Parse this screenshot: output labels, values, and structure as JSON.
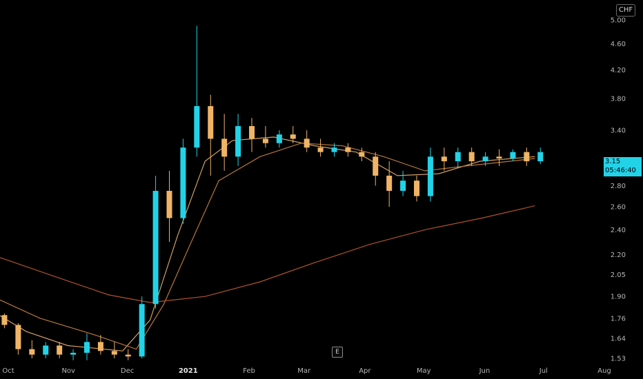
{
  "currency_badge": "CHF",
  "earnings_marker": "E",
  "last_price": {
    "value": "3.15",
    "countdown": "05:46:40"
  },
  "chart_data": {
    "type": "candlestick",
    "title": "",
    "ylim": [
      1.53,
      5.3
    ],
    "y_scale": "log",
    "grid": false,
    "y_tick_labels": [
      "5",
      "5.00",
      "4.60",
      "4.20",
      "3.80",
      "3.40",
      "2.80",
      "2.60",
      "2.40",
      "2.20",
      "2.05",
      "1.90",
      "1.76",
      "1.64",
      "1.53"
    ],
    "x_tick_labels": [
      "Oct",
      "Nov",
      "Dec",
      "2021",
      "Feb",
      "Mar",
      "Apr",
      "May",
      "Jun",
      "Jul",
      "Aug"
    ],
    "colors": {
      "up": "#22d3e8",
      "down": "#f0b466",
      "ma_fast": "#d4a060",
      "ma_mid": "#b8773a",
      "ma_slow": "#b0532a"
    },
    "ohlc_weekly": [
      {
        "week": "2020-09-28",
        "o": 1.78,
        "h": 1.79,
        "l": 1.7,
        "c": 1.72
      },
      {
        "week": "2020-10-05",
        "o": 1.72,
        "h": 1.73,
        "l": 1.55,
        "c": 1.58
      },
      {
        "week": "2020-10-12",
        "o": 1.58,
        "h": 1.63,
        "l": 1.53,
        "c": 1.55
      },
      {
        "week": "2020-10-19",
        "o": 1.55,
        "h": 1.62,
        "l": 1.53,
        "c": 1.6
      },
      {
        "week": "2020-10-26",
        "o": 1.6,
        "h": 1.62,
        "l": 1.53,
        "c": 1.55
      },
      {
        "week": "2020-11-02",
        "o": 1.55,
        "h": 1.58,
        "l": 1.52,
        "c": 1.56
      },
      {
        "week": "2020-11-09",
        "o": 1.56,
        "h": 1.67,
        "l": 1.52,
        "c": 1.62
      },
      {
        "week": "2020-11-16",
        "o": 1.62,
        "h": 1.66,
        "l": 1.55,
        "c": 1.57
      },
      {
        "week": "2020-11-23",
        "o": 1.57,
        "h": 1.62,
        "l": 1.53,
        "c": 1.55
      },
      {
        "week": "2020-11-30",
        "o": 1.55,
        "h": 1.58,
        "l": 1.52,
        "c": 1.54
      },
      {
        "week": "2020-12-07",
        "o": 1.54,
        "h": 1.9,
        "l": 1.53,
        "c": 1.85
      },
      {
        "week": "2020-12-14",
        "o": 1.85,
        "h": 2.9,
        "l": 1.82,
        "c": 2.75
      },
      {
        "week": "2020-12-21",
        "o": 2.75,
        "h": 2.95,
        "l": 2.3,
        "c": 2.5
      },
      {
        "week": "2020-12-28",
        "o": 2.5,
        "h": 3.3,
        "l": 2.45,
        "c": 3.2
      },
      {
        "week": "2021-01-04",
        "o": 3.2,
        "h": 4.9,
        "l": 3.1,
        "c": 3.7
      },
      {
        "week": "2021-01-11",
        "o": 3.7,
        "h": 3.85,
        "l": 2.9,
        "c": 3.3
      },
      {
        "week": "2021-01-18",
        "o": 3.3,
        "h": 3.6,
        "l": 2.95,
        "c": 3.1
      },
      {
        "week": "2021-01-25",
        "o": 3.1,
        "h": 3.6,
        "l": 3.0,
        "c": 3.45
      },
      {
        "week": "2021-02-01",
        "o": 3.45,
        "h": 3.55,
        "l": 3.15,
        "c": 3.3
      },
      {
        "week": "2021-02-08",
        "o": 3.3,
        "h": 3.45,
        "l": 3.2,
        "c": 3.25
      },
      {
        "week": "2021-02-15",
        "o": 3.25,
        "h": 3.4,
        "l": 3.2,
        "c": 3.35
      },
      {
        "week": "2021-02-22",
        "o": 3.35,
        "h": 3.45,
        "l": 3.25,
        "c": 3.3
      },
      {
        "week": "2021-03-01",
        "o": 3.3,
        "h": 3.4,
        "l": 3.15,
        "c": 3.2
      },
      {
        "week": "2021-03-08",
        "o": 3.2,
        "h": 3.3,
        "l": 3.1,
        "c": 3.15
      },
      {
        "week": "2021-03-15",
        "o": 3.15,
        "h": 3.25,
        "l": 3.1,
        "c": 3.2
      },
      {
        "week": "2021-03-22",
        "o": 3.2,
        "h": 3.25,
        "l": 3.1,
        "c": 3.15
      },
      {
        "week": "2021-03-29",
        "o": 3.15,
        "h": 3.2,
        "l": 3.05,
        "c": 3.1
      },
      {
        "week": "2021-04-05",
        "o": 3.1,
        "h": 3.15,
        "l": 2.8,
        "c": 2.9
      },
      {
        "week": "2021-04-12",
        "o": 2.9,
        "h": 3.05,
        "l": 2.6,
        "c": 2.75
      },
      {
        "week": "2021-04-19",
        "o": 2.75,
        "h": 2.95,
        "l": 2.7,
        "c": 2.85
      },
      {
        "week": "2021-04-26",
        "o": 2.85,
        "h": 2.9,
        "l": 2.65,
        "c": 2.7
      },
      {
        "week": "2021-05-03",
        "o": 2.7,
        "h": 3.2,
        "l": 2.65,
        "c": 3.1
      },
      {
        "week": "2021-05-10",
        "o": 3.1,
        "h": 3.2,
        "l": 2.95,
        "c": 3.05
      },
      {
        "week": "2021-05-17",
        "o": 3.05,
        "h": 3.2,
        "l": 2.98,
        "c": 3.15
      },
      {
        "week": "2021-05-24",
        "o": 3.15,
        "h": 3.2,
        "l": 3.0,
        "c": 3.05
      },
      {
        "week": "2021-05-31",
        "o": 3.05,
        "h": 3.15,
        "l": 3.0,
        "c": 3.1
      },
      {
        "week": "2021-06-07",
        "o": 3.1,
        "h": 3.18,
        "l": 3.0,
        "c": 3.08
      },
      {
        "week": "2021-06-14",
        "o": 3.08,
        "h": 3.18,
        "l": 3.05,
        "c": 3.15
      },
      {
        "week": "2021-06-21",
        "o": 3.15,
        "h": 3.2,
        "l": 3.0,
        "c": 3.05
      },
      {
        "week": "2021-06-28",
        "o": 3.05,
        "h": 3.2,
        "l": 3.02,
        "c": 3.15
      }
    ],
    "moving_averages": [
      {
        "key": "ma_fast",
        "points": [
          [
            "2020-09-28",
            1.78
          ],
          [
            "2020-10-12",
            1.68
          ],
          [
            "2020-11-02",
            1.6
          ],
          [
            "2020-11-30",
            1.57
          ],
          [
            "2020-12-14",
            1.75
          ],
          [
            "2020-12-28",
            2.35
          ],
          [
            "2021-01-11",
            3.05
          ],
          [
            "2021-01-25",
            3.28
          ],
          [
            "2021-02-15",
            3.32
          ],
          [
            "2021-03-08",
            3.22
          ],
          [
            "2021-03-29",
            3.15
          ],
          [
            "2021-04-19",
            2.9
          ],
          [
            "2021-05-10",
            2.92
          ],
          [
            "2021-05-31",
            3.05
          ],
          [
            "2021-06-28",
            3.1
          ]
        ]
      },
      {
        "key": "ma_mid",
        "points": [
          [
            "2020-09-28",
            1.88
          ],
          [
            "2020-10-19",
            1.76
          ],
          [
            "2020-11-16",
            1.66
          ],
          [
            "2020-12-07",
            1.58
          ],
          [
            "2020-12-21",
            1.85
          ],
          [
            "2021-01-04",
            2.3
          ],
          [
            "2021-01-18",
            2.85
          ],
          [
            "2021-02-08",
            3.1
          ],
          [
            "2021-03-01",
            3.25
          ],
          [
            "2021-03-22",
            3.22
          ],
          [
            "2021-04-12",
            3.1
          ],
          [
            "2021-05-03",
            2.95
          ],
          [
            "2021-05-24",
            3.0
          ],
          [
            "2021-06-28",
            3.08
          ]
        ]
      },
      {
        "key": "ma_slow",
        "points": [
          [
            "2020-09-28",
            2.18
          ],
          [
            "2020-10-26",
            2.04
          ],
          [
            "2020-11-23",
            1.91
          ],
          [
            "2020-12-14",
            1.86
          ],
          [
            "2021-01-11",
            1.9
          ],
          [
            "2021-02-08",
            2.0
          ],
          [
            "2021-03-08",
            2.14
          ],
          [
            "2021-04-05",
            2.28
          ],
          [
            "2021-05-03",
            2.4
          ],
          [
            "2021-06-01",
            2.5
          ],
          [
            "2021-06-28",
            2.61
          ]
        ]
      }
    ]
  }
}
